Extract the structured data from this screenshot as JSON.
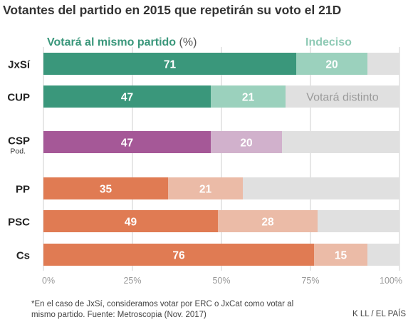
{
  "title": "Votantes del partido en 2015 que repetirán su voto el 21D",
  "footnote": "*En el caso de JxSí, consideramos votar por ERC o JxCat como votar al mismo partido. Fuente: Metroscopia (Nov. 2017)",
  "credit": "K LL / EL PAÍS",
  "chart_data": {
    "type": "bar",
    "orientation": "horizontal",
    "stacked": true,
    "header_labels": {
      "same": "Votará al mismo partido",
      "same_unit": "(%)",
      "undecided": "Indeciso",
      "different": "Votará distinto"
    },
    "categories": [
      "JxSí",
      "CUP",
      "CSP",
      "PP",
      "PSC",
      "Cs"
    ],
    "category_sublabels": [
      "",
      "",
      "Pod.",
      "",
      "",
      ""
    ],
    "series": [
      {
        "name": "Votará al mismo partido",
        "values": [
          71,
          47,
          47,
          35,
          49,
          76
        ]
      },
      {
        "name": "Indeciso",
        "values": [
          20,
          21,
          20,
          21,
          28,
          15
        ]
      }
    ],
    "colors": {
      "independentist_same": "#3a977b",
      "independentist_undecided": "#9bd1bd",
      "podemos_same": "#a55897",
      "podemos_undecided": "#d1b1cc",
      "constitutionalist_same": "#e07b53",
      "constitutionalist_undecided": "#ebbba7",
      "different": "#e0e0e0"
    },
    "bar_color_groups": [
      "independentist",
      "independentist",
      "podemos",
      "constitutionalist",
      "constitutionalist",
      "constitutionalist"
    ],
    "xlim": [
      0,
      100
    ],
    "xticks": [
      "0%",
      "25%",
      "50%",
      "75%",
      "100%"
    ],
    "grid": true
  }
}
